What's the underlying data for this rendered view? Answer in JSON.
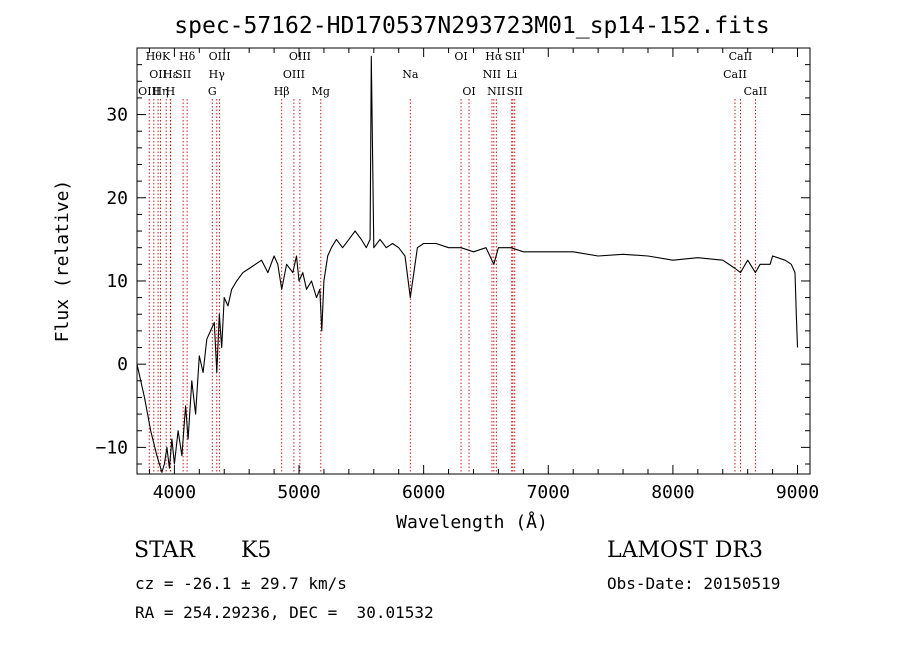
{
  "chart_data": {
    "type": "line",
    "title": "spec-57162-HD170537N293723M01_sp14-152.fits",
    "xlabel": "Wavelength (Å)",
    "ylabel": "Flux (relative)",
    "xlim": [
      3700,
      9100
    ],
    "ylim": [
      -13.2,
      38
    ],
    "xticks": [
      4000,
      5000,
      6000,
      7000,
      8000,
      9000
    ],
    "yticks": [
      -10,
      0,
      10,
      20,
      30
    ],
    "grid": false,
    "line_color": "#000000",
    "marker_color": "#cc0000",
    "series": [
      {
        "x": [
          3700,
          3760,
          3810,
          3860,
          3900,
          3920,
          3940,
          3960,
          3980,
          4000,
          4030,
          4060,
          4090,
          4110,
          4140,
          4170,
          4200,
          4230,
          4260,
          4290,
          4320,
          4340,
          4360,
          4380,
          4400,
          4430,
          4460,
          4500,
          4550,
          4600,
          4650,
          4700,
          4750,
          4800,
          4830,
          4861,
          4900,
          4950,
          4980,
          5000,
          5030,
          5060,
          5100,
          5140,
          5167,
          5183,
          5200,
          5230,
          5260,
          5300,
          5350,
          5400,
          5450,
          5500,
          5540,
          5570,
          5580,
          5600,
          5650,
          5700,
          5750,
          5800,
          5850,
          5893,
          5950,
          6000,
          6100,
          6200,
          6300,
          6400,
          6500,
          6563,
          6600,
          6700,
          6800,
          6900,
          7000,
          7200,
          7400,
          7600,
          7800,
          8000,
          8200,
          8400,
          8500,
          8542,
          8600,
          8662,
          8700,
          8780,
          8800,
          8900,
          8950,
          8980,
          8990,
          9000
        ],
        "y": [
          0,
          -4,
          -8,
          -11,
          -13,
          -12,
          -10,
          -12.5,
          -9,
          -12,
          -8,
          -11,
          -5,
          -9,
          -2,
          -6,
          1,
          -1,
          3,
          4,
          5,
          -1,
          6,
          2,
          8,
          7,
          9,
          10,
          11,
          11.5,
          12,
          12.5,
          11,
          13,
          12,
          9,
          12,
          11,
          13,
          10,
          11,
          9,
          10,
          8,
          9,
          4,
          10,
          13,
          14,
          15,
          14,
          15,
          16,
          15,
          14,
          15,
          37,
          14,
          15,
          14,
          14.5,
          14,
          13,
          8,
          14,
          14.5,
          14.5,
          14,
          14,
          13.5,
          14,
          12,
          14,
          14,
          13.5,
          13.5,
          13.5,
          13.5,
          13,
          13.2,
          13,
          12.5,
          12.8,
          12.5,
          11.5,
          11,
          12.5,
          11,
          12,
          12,
          13,
          12.5,
          12,
          11,
          6,
          2
        ]
      }
    ],
    "line_markers": [
      {
        "wl": 3798,
        "label": "OIII",
        "row": 2
      },
      {
        "wl": 3835,
        "label": "Hθ",
        "row": 0
      },
      {
        "wl": 3869,
        "label": "OII",
        "row": 1
      },
      {
        "wl": 3889,
        "label": "Hη",
        "row": 2
      },
      {
        "wl": 3934,
        "label": "K",
        "row": 0
      },
      {
        "wl": 3968,
        "label": "H",
        "row": 2
      },
      {
        "wl": 3970,
        "label": "Hε",
        "row": 1
      },
      {
        "wl": 4070,
        "label": "SII",
        "row": 1
      },
      {
        "wl": 4102,
        "label": "Hδ",
        "row": 0
      },
      {
        "wl": 4304,
        "label": "G",
        "row": 2
      },
      {
        "wl": 4340,
        "label": "Hγ",
        "row": 1
      },
      {
        "wl": 4363,
        "label": "OIII",
        "row": 0
      },
      {
        "wl": 4861,
        "label": "Hβ",
        "row": 2
      },
      {
        "wl": 4959,
        "label": "OIII",
        "row": 1
      },
      {
        "wl": 5007,
        "label": "OIII",
        "row": 0
      },
      {
        "wl": 5175,
        "label": "Mg",
        "row": 2
      },
      {
        "wl": 5893,
        "label": "Na",
        "row": 1
      },
      {
        "wl": 6300,
        "label": "OI",
        "row": 0
      },
      {
        "wl": 6364,
        "label": "OI",
        "row": 2
      },
      {
        "wl": 6548,
        "label": "NII",
        "row": 1
      },
      {
        "wl": 6563,
        "label": "Hα",
        "row": 0
      },
      {
        "wl": 6583,
        "label": "NII",
        "row": 2
      },
      {
        "wl": 6707,
        "label": "Li",
        "row": 1
      },
      {
        "wl": 6716,
        "label": "SII",
        "row": 0
      },
      {
        "wl": 6731,
        "label": "SII",
        "row": 2
      },
      {
        "wl": 8498,
        "label": "CaII",
        "row": 1
      },
      {
        "wl": 8542,
        "label": "CaII",
        "row": 0
      },
      {
        "wl": 8662,
        "label": "CaII",
        "row": 2
      }
    ]
  },
  "info": {
    "object_class": "STAR",
    "subclass": "K5",
    "survey": "LAMOST DR3",
    "redshift": "cz = -26.1 ± 29.7 km/s",
    "obs_date": "Obs-Date: 20150519",
    "coords": "RA = 254.29236, DEC =  30.01532"
  }
}
